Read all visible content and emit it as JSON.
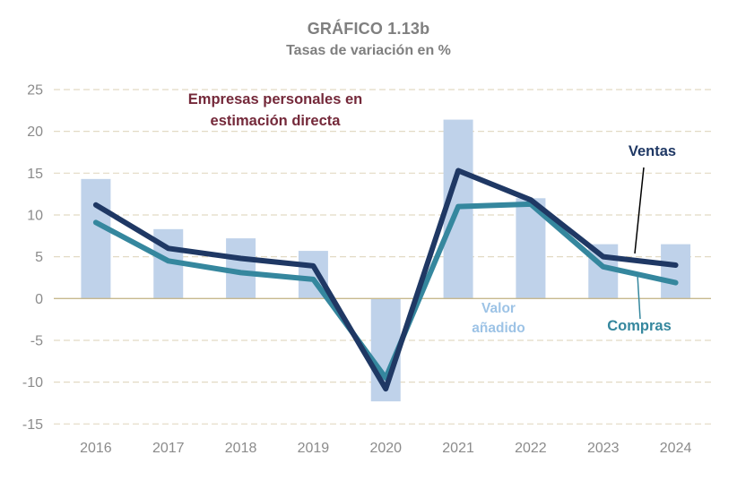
{
  "title": "GRÁFICO 1.13b",
  "subtitle": "Tasas de variación en %",
  "annotation": {
    "line1": "Empresas personales en",
    "line2": "estimación directa"
  },
  "labels": {
    "ventas": "Ventas",
    "compras": "Compras",
    "valor_line1": "Valor",
    "valor_line2": "añadido"
  },
  "colors": {
    "title": "#7f7f7f",
    "annotation": "#74293a",
    "bar_fill": "#bfd2ea",
    "ventas_line": "#1f3864",
    "compras_line": "#35879e",
    "valor_label": "#9dc3e6",
    "gridline": "#e2dac4",
    "zero_line": "#c7b98e",
    "axis_text": "#8b8b8b",
    "leader_ventas": "#000000",
    "leader_compras": "#35879e"
  },
  "chart_data": {
    "type": "combo",
    "title": "GRÁFICO 1.13b",
    "subtitle": "Tasas de variación en %",
    "categories": [
      "2016",
      "2017",
      "2018",
      "2019",
      "2020",
      "2021",
      "2022",
      "2023",
      "2024"
    ],
    "series": [
      {
        "name": "Valor añadido",
        "type": "bar",
        "color": "#bfd2ea",
        "values": [
          14.3,
          8.3,
          7.2,
          5.7,
          -12.3,
          21.4,
          12.0,
          6.5,
          6.5
        ]
      },
      {
        "name": "Compras",
        "type": "line",
        "color": "#35879e",
        "values": [
          9.1,
          4.5,
          3.1,
          2.3,
          -9.5,
          11.0,
          11.3,
          3.8,
          1.9
        ]
      },
      {
        "name": "Ventas",
        "type": "line",
        "color": "#1f3864",
        "values": [
          11.2,
          6.0,
          4.8,
          3.9,
          -10.8,
          15.3,
          11.8,
          5.0,
          4.0
        ]
      }
    ],
    "xlabel": "",
    "ylabel": "",
    "ylim": [
      -15,
      25
    ],
    "y_ticks": [
      25,
      20,
      15,
      10,
      5,
      0,
      -5,
      -10,
      -15
    ],
    "grid": "horizontal-dashed",
    "legend_position": "inline-text-labels"
  }
}
